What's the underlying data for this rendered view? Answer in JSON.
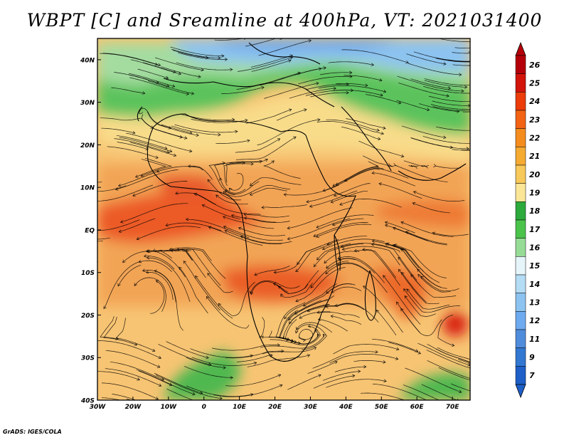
{
  "title": "WBPT [C] and Sreamline at 400hPa, VT: 2021031400",
  "credit": "GrADS: IGES/COLA",
  "map": {
    "lon_range": [
      -30,
      75
    ],
    "lat_range": [
      -40,
      45
    ],
    "lat_ticks": [
      "40N",
      "30N",
      "20N",
      "10N",
      "EQ",
      "10S",
      "20S",
      "30S",
      "40S"
    ],
    "lon_ticks": [
      "30W",
      "20W",
      "10W",
      "0",
      "10E",
      "20E",
      "30E",
      "40E",
      "50E",
      "60E",
      "70E"
    ]
  },
  "colorbar": {
    "labels": [
      "26",
      "25",
      "24",
      "23",
      "22",
      "21",
      "20",
      "19",
      "18",
      "17",
      "16",
      "15",
      "14",
      "13",
      "12",
      "11",
      "9",
      "7"
    ],
    "colors": [
      "#b4000a",
      "#d2140a",
      "#eb3c0a",
      "#f26414",
      "#f58c1e",
      "#f5aa32",
      "#f7c85a",
      "#fae696",
      "#2daa3c",
      "#4bc34b",
      "#96dc96",
      "#e6f5fa",
      "#b4dcf5",
      "#8cc3f0",
      "#6eaaf0",
      "#508cdc",
      "#3278d2",
      "#1e5fc8"
    ]
  }
}
